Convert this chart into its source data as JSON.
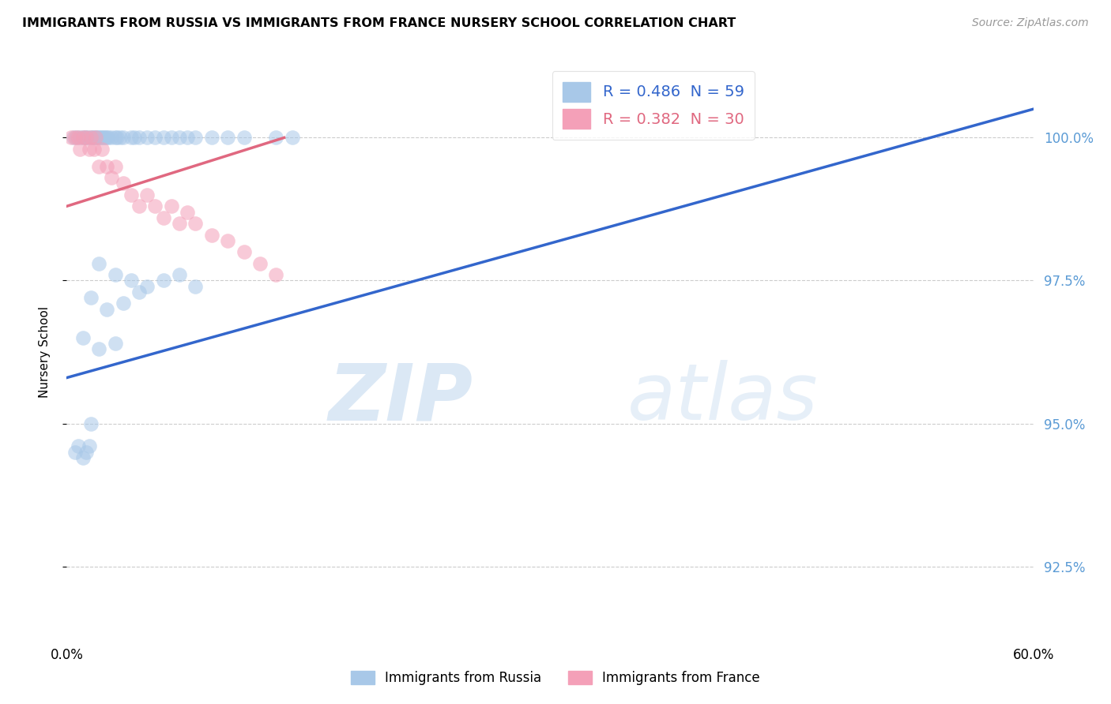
{
  "title": "IMMIGRANTS FROM RUSSIA VS IMMIGRANTS FROM FRANCE NURSERY SCHOOL CORRELATION CHART",
  "source": "Source: ZipAtlas.com",
  "xlabel_bottom_left": "0.0%",
  "xlabel_bottom_right": "60.0%",
  "ylabel": "Nursery School",
  "ytick_labels": [
    "92.5%",
    "95.0%",
    "97.5%",
    "100.0%"
  ],
  "ytick_values": [
    92.5,
    95.0,
    97.5,
    100.0
  ],
  "xrange": [
    0.0,
    60.0
  ],
  "yrange": [
    91.2,
    101.3
  ],
  "legend_russia": "R = 0.486  N = 59",
  "legend_france": "R = 0.382  N = 30",
  "color_russia": "#A8C8E8",
  "color_france": "#F4A0B8",
  "color_line_russia": "#3366CC",
  "color_line_france": "#E06880",
  "watermark_zip": "ZIP",
  "watermark_atlas": "atlas",
  "russia_scatter_x": [
    0.4,
    0.6,
    0.8,
    1.0,
    1.1,
    1.2,
    1.3,
    1.5,
    1.6,
    1.7,
    1.8,
    1.9,
    2.0,
    2.1,
    2.2,
    2.3,
    2.4,
    2.5,
    2.6,
    2.8,
    3.0,
    3.1,
    3.3,
    3.5,
    4.0,
    4.2,
    4.5,
    5.0,
    5.5,
    6.0,
    6.5,
    7.0,
    7.5,
    8.0,
    9.0,
    10.0,
    11.0,
    13.0,
    14.0,
    2.0,
    3.0,
    4.0,
    5.0,
    6.0,
    7.0,
    8.0,
    1.5,
    2.5,
    3.5,
    4.5,
    1.0,
    2.0,
    3.0,
    1.5,
    0.5,
    0.7,
    1.0,
    1.2,
    1.4
  ],
  "russia_scatter_y": [
    100.0,
    100.0,
    100.0,
    100.0,
    100.0,
    100.0,
    100.0,
    100.0,
    100.0,
    100.0,
    100.0,
    100.0,
    100.0,
    100.0,
    100.0,
    100.0,
    100.0,
    100.0,
    100.0,
    100.0,
    100.0,
    100.0,
    100.0,
    100.0,
    100.0,
    100.0,
    100.0,
    100.0,
    100.0,
    100.0,
    100.0,
    100.0,
    100.0,
    100.0,
    100.0,
    100.0,
    100.0,
    100.0,
    100.0,
    97.8,
    97.6,
    97.5,
    97.4,
    97.5,
    97.6,
    97.4,
    97.2,
    97.0,
    97.1,
    97.3,
    96.5,
    96.3,
    96.4,
    95.0,
    94.5,
    94.6,
    94.4,
    94.5,
    94.6
  ],
  "france_scatter_x": [
    0.3,
    0.5,
    0.7,
    0.8,
    1.0,
    1.2,
    1.4,
    1.5,
    1.7,
    1.8,
    2.0,
    2.2,
    2.5,
    2.8,
    3.0,
    3.5,
    4.0,
    4.5,
    5.0,
    5.5,
    6.0,
    6.5,
    7.0,
    7.5,
    8.0,
    9.0,
    10.0,
    11.0,
    12.0,
    13.0
  ],
  "france_scatter_y": [
    100.0,
    100.0,
    100.0,
    99.8,
    100.0,
    100.0,
    99.8,
    100.0,
    99.8,
    100.0,
    99.5,
    99.8,
    99.5,
    99.3,
    99.5,
    99.2,
    99.0,
    98.8,
    99.0,
    98.8,
    98.6,
    98.8,
    98.5,
    98.7,
    98.5,
    98.3,
    98.2,
    98.0,
    97.8,
    97.6
  ],
  "russia_trendline_x": [
    0.0,
    60.0
  ],
  "russia_trendline_y": [
    95.8,
    100.5
  ],
  "france_trendline_x": [
    0.0,
    13.5
  ],
  "france_trendline_y": [
    98.8,
    100.0
  ]
}
